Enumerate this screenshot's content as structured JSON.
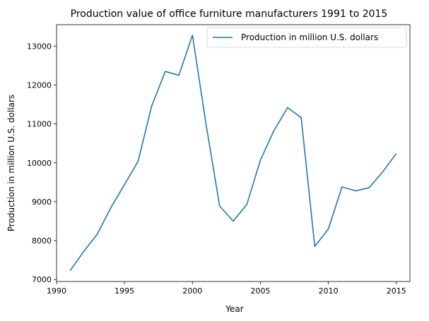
{
  "chart_data": {
    "type": "line",
    "title": "Production value of office furniture manufacturers 1991 to 2015",
    "xlabel": "Year",
    "ylabel": "Production in million U.S. dollars",
    "xlim": [
      1990,
      2016
    ],
    "ylim": [
      6950,
      13550
    ],
    "xticks": [
      1990,
      1995,
      2000,
      2005,
      2010,
      2015
    ],
    "yticks": [
      7000,
      8000,
      9000,
      10000,
      11000,
      12000,
      13000
    ],
    "grid": false,
    "legend_position": "top-right",
    "series": [
      {
        "name": "Production in million U.S. dollars",
        "color": "#1f77b4",
        "x": [
          1991,
          1992,
          1993,
          1994,
          1995,
          1996,
          1997,
          1998,
          1999,
          2000,
          2001,
          2002,
          2003,
          2004,
          2005,
          2006,
          2007,
          2008,
          2009,
          2010,
          2011,
          2012,
          2013,
          2014,
          2015
        ],
        "y": [
          7230,
          7720,
          8170,
          8850,
          9440,
          10040,
          11460,
          12350,
          12250,
          13280,
          10990,
          8890,
          8500,
          8930,
          10070,
          10830,
          11420,
          11160,
          7850,
          8300,
          9380,
          9280,
          9360,
          9770,
          10240
        ]
      }
    ]
  }
}
